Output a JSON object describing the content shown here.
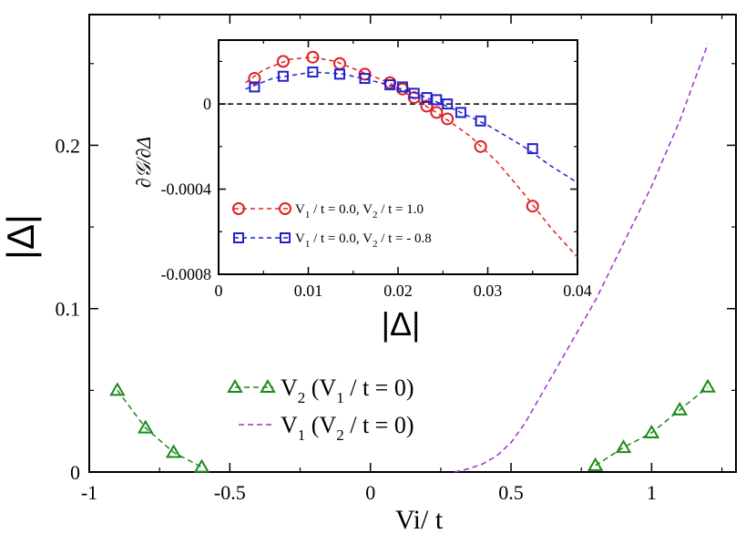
{
  "chart_data": [
    {
      "type": "line",
      "name": "main",
      "xlabel": "Vi/ t",
      "ylabel": "|Δ|",
      "xlim": [
        -1,
        1.3
      ],
      "ylim": [
        0,
        0.28
      ],
      "xticks": [
        -1,
        -0.5,
        0,
        0.5,
        1
      ],
      "xtick_labels": [
        "-1",
        "-0.5",
        "0",
        "0.5",
        "1"
      ],
      "yticks": [
        0,
        0.1,
        0.2
      ],
      "ytick_labels": [
        "0",
        "0.1",
        "0.2"
      ],
      "series": [
        {
          "name": "V2 (V1 / t = 0)",
          "legend_main": "V",
          "legend_sub": "2",
          "legend_open": " (V",
          "legend_sub2": "1",
          "legend_tail": " / t = 0)",
          "color": "#1a8a1a",
          "marker": "triangle",
          "style": "dashed",
          "segments": [
            {
              "x": [
                -0.9,
                -0.8,
                -0.7,
                -0.6
              ],
              "y": [
                0.05,
                0.027,
                0.012,
                0.003
              ]
            },
            {
              "x": [
                0.8,
                0.9,
                1.0,
                1.1,
                1.2
              ],
              "y": [
                0.004,
                0.015,
                0.024,
                0.038,
                0.052
              ]
            }
          ]
        },
        {
          "name": "V1 (V2 / t = 0)",
          "legend_main": "V",
          "legend_sub": "1",
          "legend_open": " (V",
          "legend_sub2": "2",
          "legend_tail": " / t = 0)",
          "color": "#9b30d0",
          "marker": "none",
          "style": "dashed",
          "segments": [
            {
              "x": [
                0.3,
                0.35,
                0.4,
                0.45,
                0.5,
                0.55,
                0.6,
                0.7,
                0.8,
                0.9,
                1.0,
                1.1,
                1.2
              ],
              "y": [
                0.0,
                0.002,
                0.005,
                0.01,
                0.018,
                0.03,
                0.045,
                0.075,
                0.105,
                0.14,
                0.175,
                0.215,
                0.262
              ]
            }
          ]
        }
      ]
    },
    {
      "type": "line",
      "name": "inset",
      "xlabel": "|Δ|",
      "ylabel": "∂𝒢/∂Δ",
      "xlim": [
        0,
        0.04
      ],
      "ylim": [
        -0.0008,
        0.0003
      ],
      "xticks": [
        0,
        0.01,
        0.02,
        0.03,
        0.04
      ],
      "xtick_labels": [
        "0",
        "0.01",
        "0.02",
        "0.03",
        "0.04"
      ],
      "yticks": [
        0,
        -0.0004,
        -0.0008
      ],
      "ytick_labels": [
        "0",
        "-0.0004",
        "-0.0008"
      ],
      "reference_line_y": 0,
      "series": [
        {
          "name": "V1 / t = 0.0, V2 / t = 1.0",
          "legend_parts": [
            "V",
            "1",
            " / t = 0.0, V",
            "2",
            " / t = 1.0"
          ],
          "color": "#e02020",
          "marker": "circle",
          "style": "dashed",
          "x": [
            0.004,
            0.0072,
            0.0105,
            0.0135,
            0.0163,
            0.0191,
            0.0205,
            0.0218,
            0.0232,
            0.0243,
            0.0255,
            0.0292,
            0.035
          ],
          "y": [
            0.00012,
            0.0002,
            0.00022,
            0.00019,
            0.00014,
            0.0001,
            7e-05,
            3e-05,
            -1e-05,
            -4e-05,
            -7e-05,
            -0.0002,
            -0.00048
          ],
          "curve_x": [
            0.003,
            0.005,
            0.008,
            0.0105,
            0.013,
            0.016,
            0.019,
            0.022,
            0.025,
            0.028,
            0.031,
            0.034,
            0.037,
            0.04
          ],
          "curve_y": [
            0.0001,
            0.00016,
            0.00021,
            0.00022,
            0.0002,
            0.00015,
            0.0001,
            2e-05,
            -6e-05,
            -0.00015,
            -0.00027,
            -0.00042,
            -0.00058,
            -0.00072
          ]
        },
        {
          "name": "V1 / t = 0.0, V2 / t = - 0.8",
          "legend_parts": [
            "V",
            "1",
            " / t = 0.0, V",
            "2",
            " / t = - 0.8"
          ],
          "color": "#2020d0",
          "marker": "square",
          "style": "dashed",
          "x": [
            0.004,
            0.0072,
            0.0105,
            0.0135,
            0.0163,
            0.0191,
            0.0205,
            0.0218,
            0.0232,
            0.0243,
            0.0255,
            0.027,
            0.0292,
            0.035
          ],
          "y": [
            8e-05,
            0.00013,
            0.00015,
            0.00014,
            0.00012,
            9e-05,
            8e-05,
            5e-05,
            3e-05,
            2e-05,
            0.0,
            -4e-05,
            -8e-05,
            -0.00021
          ],
          "curve_x": [
            0.003,
            0.006,
            0.0105,
            0.014,
            0.018,
            0.022,
            0.026,
            0.03,
            0.034,
            0.037,
            0.04
          ],
          "curve_y": [
            7e-05,
            0.00012,
            0.00015,
            0.00014,
            0.0001,
            5e-05,
            -2e-05,
            -0.0001,
            -0.0002,
            -0.00029,
            -0.00037
          ]
        }
      ]
    }
  ]
}
